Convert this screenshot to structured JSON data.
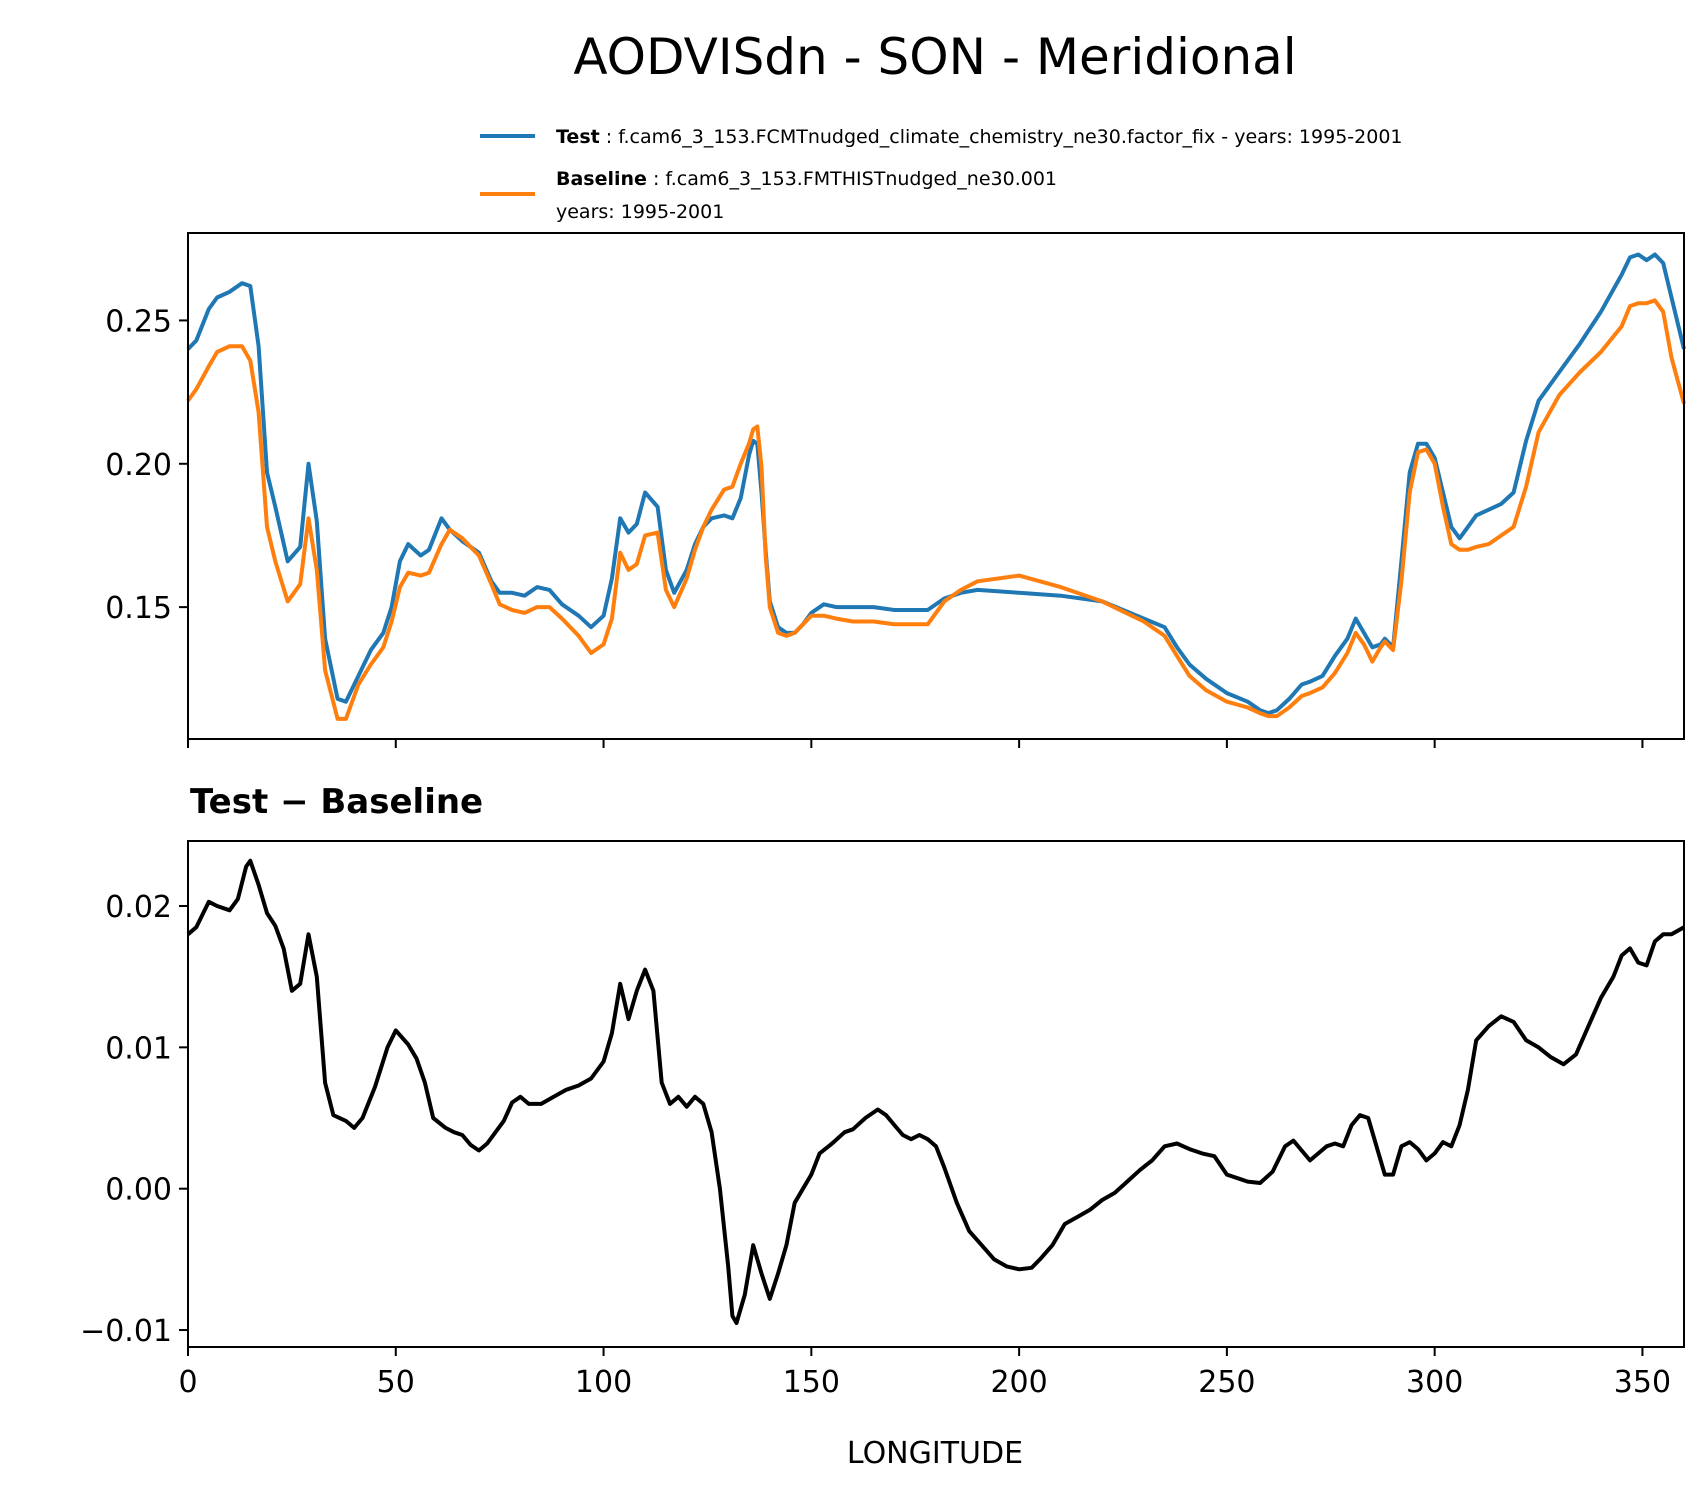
{
  "figure": {
    "title": "AODVISdn - SON - Meridional"
  },
  "legend": {
    "entries": [
      {
        "label": "Test",
        "separator": " : ",
        "text": "f.cam6_3_153.FCMTnudged_climate_chemistry_ne30.factor_fix - years: 1995-2001",
        "text2": "",
        "color": "#1f77b4"
      },
      {
        "label": "Baseline",
        "separator": " : ",
        "text": "f.cam6_3_153.FMTHISTnudged_ne30.001",
        "text2": "years: 1995-2001",
        "color": "#ff7f0e"
      }
    ]
  },
  "chart_data": [
    {
      "type": "line",
      "title": "",
      "xlabel": "",
      "ylabel": "",
      "xlim": [
        0,
        360
      ],
      "ylim": [
        0.104,
        0.2805
      ],
      "yticks": [
        0.15,
        0.2,
        0.25
      ],
      "ytick_labels": [
        "0.15",
        "0.20",
        "0.25"
      ],
      "xticks": [
        0,
        50,
        100,
        150,
        200,
        250,
        300,
        350
      ],
      "xtick_labels_visible": false,
      "grid": false,
      "legend_position": "top-right, above plot",
      "series": [
        {
          "name": "Test",
          "color": "#1f77b4",
          "x": [
            0,
            2,
            5,
            7,
            10,
            13,
            15,
            17,
            19,
            21,
            24,
            27,
            29,
            31,
            33,
            36,
            38,
            41,
            44,
            47,
            49,
            51,
            53,
            56,
            58,
            61,
            63,
            66,
            70,
            73,
            75,
            78,
            81,
            84,
            87,
            90,
            94,
            97,
            100,
            102,
            104,
            106,
            108,
            110,
            113,
            115,
            117,
            120,
            122,
            124,
            126,
            129,
            131,
            133,
            135,
            136,
            137,
            138,
            139,
            140,
            142,
            144,
            146,
            148,
            150,
            153,
            156,
            160,
            165,
            170,
            175,
            178,
            182,
            186,
            190,
            200,
            210,
            220,
            230,
            235,
            238,
            241,
            245,
            250,
            255,
            258,
            260,
            262,
            265,
            268,
            270,
            273,
            276,
            279,
            281,
            283,
            285,
            287,
            288,
            290,
            292,
            294,
            296,
            298,
            300,
            302,
            304,
            306,
            308,
            310,
            313,
            316,
            319,
            322,
            325,
            330,
            335,
            340,
            345,
            347,
            349,
            351,
            353,
            355,
            357,
            360
          ],
          "values": [
            0.24,
            0.243,
            0.254,
            0.258,
            0.26,
            0.263,
            0.262,
            0.241,
            0.197,
            0.185,
            0.166,
            0.171,
            0.2,
            0.18,
            0.139,
            0.118,
            0.117,
            0.126,
            0.135,
            0.141,
            0.15,
            0.166,
            0.172,
            0.168,
            0.17,
            0.181,
            0.177,
            0.173,
            0.169,
            0.159,
            0.155,
            0.155,
            0.154,
            0.157,
            0.156,
            0.151,
            0.147,
            0.143,
            0.147,
            0.16,
            0.181,
            0.176,
            0.179,
            0.19,
            0.185,
            0.163,
            0.155,
            0.163,
            0.172,
            0.178,
            0.181,
            0.182,
            0.181,
            0.188,
            0.203,
            0.208,
            0.207,
            0.19,
            0.17,
            0.152,
            0.143,
            0.141,
            0.141,
            0.144,
            0.148,
            0.151,
            0.15,
            0.15,
            0.15,
            0.149,
            0.149,
            0.149,
            0.153,
            0.155,
            0.156,
            0.155,
            0.154,
            0.152,
            0.146,
            0.143,
            0.136,
            0.13,
            0.125,
            0.12,
            0.117,
            0.114,
            0.113,
            0.114,
            0.118,
            0.123,
            0.124,
            0.126,
            0.133,
            0.139,
            0.146,
            0.141,
            0.136,
            0.137,
            0.139,
            0.136,
            0.166,
            0.197,
            0.207,
            0.207,
            0.202,
            0.19,
            0.178,
            0.174,
            0.178,
            0.182,
            0.184,
            0.186,
            0.19,
            0.208,
            0.222,
            0.232,
            0.242,
            0.253,
            0.266,
            0.272,
            0.273,
            0.271,
            0.273,
            0.27,
            0.258,
            0.24
          ]
        },
        {
          "name": "Baseline",
          "color": "#ff7f0e",
          "x": [
            0,
            2,
            5,
            7,
            10,
            13,
            15,
            17,
            19,
            21,
            24,
            27,
            29,
            31,
            33,
            36,
            38,
            41,
            44,
            47,
            49,
            51,
            53,
            56,
            58,
            61,
            63,
            66,
            70,
            73,
            75,
            78,
            81,
            84,
            87,
            90,
            94,
            97,
            100,
            102,
            104,
            106,
            108,
            110,
            113,
            115,
            117,
            120,
            122,
            124,
            126,
            129,
            131,
            133,
            135,
            136,
            137,
            138,
            139,
            140,
            142,
            144,
            146,
            148,
            150,
            153,
            156,
            160,
            165,
            170,
            175,
            178,
            182,
            186,
            190,
            200,
            210,
            220,
            230,
            235,
            238,
            241,
            245,
            250,
            255,
            258,
            260,
            262,
            265,
            268,
            270,
            273,
            276,
            279,
            281,
            283,
            285,
            287,
            288,
            290,
            292,
            294,
            296,
            298,
            300,
            302,
            304,
            306,
            308,
            310,
            313,
            316,
            319,
            322,
            325,
            330,
            335,
            340,
            345,
            347,
            349,
            351,
            353,
            355,
            357,
            360
          ],
          "values": [
            0.222,
            0.226,
            0.234,
            0.239,
            0.241,
            0.241,
            0.236,
            0.218,
            0.178,
            0.166,
            0.152,
            0.158,
            0.181,
            0.163,
            0.128,
            0.111,
            0.111,
            0.123,
            0.13,
            0.136,
            0.145,
            0.157,
            0.162,
            0.161,
            0.162,
            0.172,
            0.177,
            0.174,
            0.168,
            0.158,
            0.151,
            0.149,
            0.148,
            0.15,
            0.15,
            0.146,
            0.14,
            0.134,
            0.137,
            0.146,
            0.169,
            0.163,
            0.165,
            0.175,
            0.176,
            0.156,
            0.15,
            0.16,
            0.17,
            0.178,
            0.184,
            0.191,
            0.192,
            0.2,
            0.207,
            0.212,
            0.213,
            0.199,
            0.168,
            0.15,
            0.141,
            0.14,
            0.141,
            0.144,
            0.147,
            0.147,
            0.146,
            0.145,
            0.145,
            0.144,
            0.144,
            0.144,
            0.152,
            0.156,
            0.159,
            0.161,
            0.157,
            0.152,
            0.145,
            0.14,
            0.133,
            0.126,
            0.121,
            0.117,
            0.115,
            0.113,
            0.112,
            0.112,
            0.115,
            0.119,
            0.12,
            0.122,
            0.127,
            0.134,
            0.141,
            0.137,
            0.131,
            0.136,
            0.138,
            0.135,
            0.159,
            0.19,
            0.204,
            0.205,
            0.2,
            0.185,
            0.172,
            0.17,
            0.17,
            0.171,
            0.172,
            0.175,
            0.178,
            0.192,
            0.211,
            0.224,
            0.232,
            0.239,
            0.248,
            0.255,
            0.256,
            0.256,
            0.257,
            0.253,
            0.237,
            0.221
          ]
        }
      ]
    },
    {
      "type": "line",
      "title": "Test − Baseline",
      "xlabel": "LONGITUDE",
      "ylabel": "",
      "xlim": [
        0,
        360
      ],
      "ylim": [
        -0.0112,
        0.0246
      ],
      "yticks": [
        -0.01,
        0.0,
        0.01,
        0.02
      ],
      "ytick_labels": [
        "−0.01",
        "0.00",
        "0.01",
        "0.02"
      ],
      "xticks": [
        0,
        50,
        100,
        150,
        200,
        250,
        300,
        350
      ],
      "xtick_labels": [
        "0",
        "50",
        "100",
        "150",
        "200",
        "250",
        "300",
        "350"
      ],
      "grid": false,
      "series": [
        {
          "color": "#000000",
          "x": [
            0,
            2,
            5,
            7,
            10,
            12,
            14,
            15,
            17,
            19,
            21,
            23,
            25,
            27,
            29,
            31,
            33,
            35,
            38,
            40,
            42,
            45,
            48,
            50,
            53,
            55,
            57,
            59,
            62,
            64,
            66,
            68,
            70,
            72,
            74,
            76,
            78,
            80,
            82,
            85,
            88,
            91,
            94,
            97,
            100,
            102,
            104,
            106,
            108,
            110,
            112,
            114,
            116,
            118,
            120,
            122,
            124,
            126,
            128,
            130,
            131,
            132,
            134,
            136,
            138,
            140,
            142,
            144,
            146,
            148,
            150,
            152,
            155,
            158,
            160,
            163,
            166,
            168,
            170,
            172,
            174,
            176,
            178,
            180,
            182,
            185,
            188,
            191,
            194,
            197,
            200,
            203,
            205,
            208,
            211,
            214,
            217,
            220,
            223,
            226,
            229,
            232,
            235,
            238,
            241,
            244,
            247,
            250,
            253,
            255,
            258,
            261,
            264,
            266,
            268,
            270,
            272,
            274,
            276,
            278,
            280,
            282,
            284,
            286,
            288,
            290,
            292,
            294,
            296,
            298,
            300,
            302,
            304,
            306,
            308,
            310,
            313,
            316,
            319,
            322,
            325,
            328,
            331,
            334,
            337,
            340,
            343,
            345,
            347,
            349,
            351,
            353,
            355,
            357,
            360
          ],
          "values": [
            0.018,
            0.0185,
            0.0203,
            0.02,
            0.0197,
            0.0205,
            0.0228,
            0.0232,
            0.0215,
            0.0195,
            0.0186,
            0.017,
            0.014,
            0.0145,
            0.018,
            0.015,
            0.0075,
            0.0052,
            0.0048,
            0.0043,
            0.005,
            0.0072,
            0.01,
            0.0112,
            0.0102,
            0.0092,
            0.0075,
            0.005,
            0.0043,
            0.004,
            0.0038,
            0.0031,
            0.0027,
            0.0032,
            0.004,
            0.0048,
            0.0061,
            0.0065,
            0.006,
            0.006,
            0.0065,
            0.007,
            0.0073,
            0.0078,
            0.009,
            0.011,
            0.0145,
            0.012,
            0.014,
            0.0155,
            0.014,
            0.0075,
            0.006,
            0.0065,
            0.0058,
            0.0065,
            0.006,
            0.004,
            0.0,
            -0.0055,
            -0.009,
            -0.0095,
            -0.0075,
            -0.004,
            -0.006,
            -0.0078,
            -0.006,
            -0.004,
            -0.001,
            0.0,
            0.001,
            0.0025,
            0.0032,
            0.004,
            0.0042,
            0.005,
            0.0056,
            0.0052,
            0.0045,
            0.0038,
            0.0035,
            0.0038,
            0.0035,
            0.003,
            0.0015,
            -0.001,
            -0.003,
            -0.004,
            -0.005,
            -0.0055,
            -0.0057,
            -0.0056,
            -0.005,
            -0.004,
            -0.0025,
            -0.002,
            -0.0015,
            -0.0008,
            -0.0003,
            0.0005,
            0.0013,
            0.002,
            0.003,
            0.0032,
            0.0028,
            0.0025,
            0.0023,
            0.001,
            0.0007,
            0.0005,
            0.0004,
            0.0012,
            0.003,
            0.0034,
            0.0027,
            0.002,
            0.0025,
            0.003,
            0.0032,
            0.003,
            0.0045,
            0.0052,
            0.005,
            0.003,
            0.001,
            0.001,
            0.003,
            0.0033,
            0.0028,
            0.002,
            0.0025,
            0.0033,
            0.003,
            0.0045,
            0.007,
            0.0105,
            0.0115,
            0.0122,
            0.0118,
            0.0105,
            0.01,
            0.0093,
            0.0088,
            0.0095,
            0.0115,
            0.0135,
            0.015,
            0.0165,
            0.017,
            0.016,
            0.0158,
            0.0175,
            0.018,
            0.018,
            0.0185
          ]
        }
      ]
    }
  ]
}
